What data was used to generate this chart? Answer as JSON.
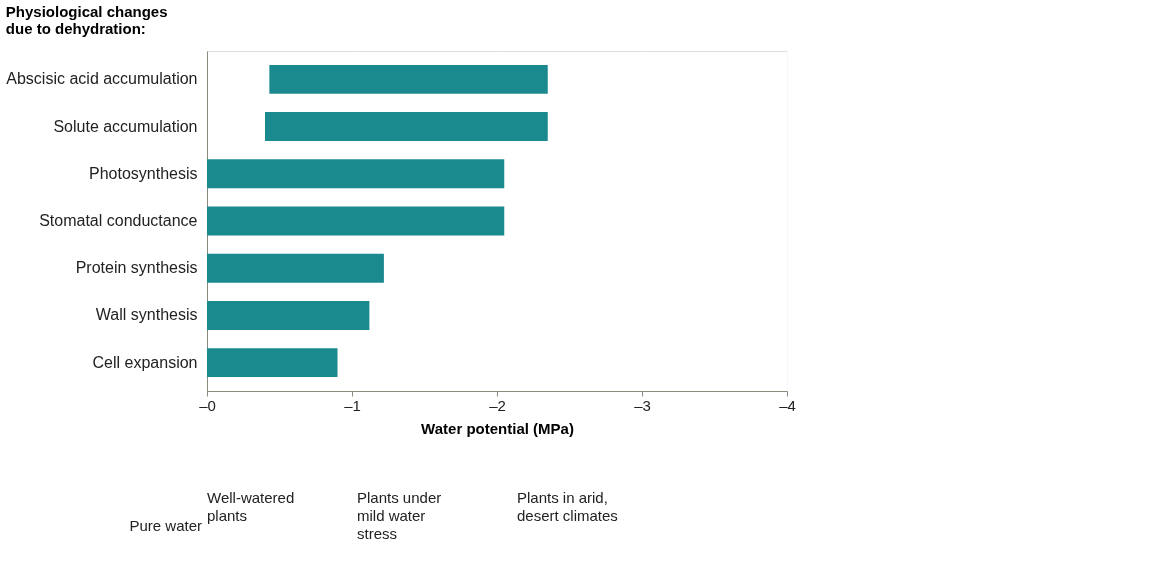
{
  "chart_data": {
    "type": "bar",
    "orientation": "horizontal",
    "title": "Physiological changes\ndue to dehydration:",
    "xlabel": "Water potential (MPa)",
    "categories": [
      "Abscisic acid accumulation",
      "Solute accumulation",
      "Photosynthesis",
      "Stomatal conductance",
      "Protein synthesis",
      "Wall synthesis",
      "Cell expansion"
    ],
    "base": [
      -0.43,
      -0.4,
      0,
      0,
      0,
      0,
      0
    ],
    "values": [
      -1.92,
      -1.95,
      -2.05,
      -2.05,
      -1.22,
      -1.12,
      -0.9
    ],
    "color": "#1b8a8e",
    "xlim": [
      0,
      -4
    ],
    "xticks": [
      {
        "value": 0,
        "label": "–0"
      },
      {
        "value": -1,
        "label": "–1"
      },
      {
        "value": -2,
        "label": "–2"
      },
      {
        "value": -3,
        "label": "–3"
      },
      {
        "value": -4,
        "label": "–4"
      }
    ],
    "grid": "x",
    "annotations": [
      "Pure water",
      "Well-watered\nplants",
      "Plants under\nmild water\nstress",
      "Plants in arid,\ndesert climates"
    ]
  }
}
